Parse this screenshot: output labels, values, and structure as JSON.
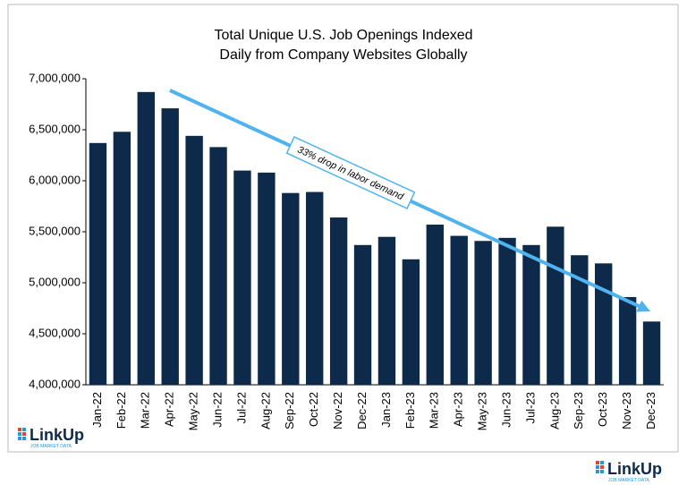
{
  "chart_data": {
    "type": "bar",
    "title": [
      "Total Unique U.S. Job Openings Indexed",
      "Daily from Company Websites Globally"
    ],
    "categories": [
      "Jan-22",
      "Feb-22",
      "Mar-22",
      "Apr-22",
      "May-22",
      "Jun-22",
      "Jul-22",
      "Aug-22",
      "Sep-22",
      "Oct-22",
      "Nov-22",
      "Dec-22",
      "Jan-23",
      "Feb-23",
      "Mar-23",
      "Apr-23",
      "May-23",
      "Jun-23",
      "Jul-23",
      "Aug-23",
      "Sep-23",
      "Oct-23",
      "Nov-23",
      "Dec-23"
    ],
    "values": [
      6370000,
      6480000,
      6870000,
      6710000,
      6440000,
      6330000,
      6100000,
      6080000,
      5880000,
      5890000,
      5640000,
      5370000,
      5450000,
      5230000,
      5570000,
      5460000,
      5410000,
      5440000,
      5370000,
      5550000,
      5270000,
      5190000,
      4860000,
      4620000
    ],
    "color": "#0d2a4a",
    "ylim": [
      4000000,
      7000000
    ],
    "yticks": [
      {
        "value": 4000000,
        "label": "4,000,000"
      },
      {
        "value": 4500000,
        "label": "4,500,000"
      },
      {
        "value": 5000000,
        "label": "5,000,000"
      },
      {
        "value": 5500000,
        "label": "5,500,000"
      },
      {
        "value": 6000000,
        "label": "6,000,000"
      },
      {
        "value": 6500000,
        "label": "6,500,000"
      },
      {
        "value": 7000000,
        "label": "7,000,000"
      }
    ],
    "grid": false,
    "annotation": "33% drop in labor demand",
    "annotation_color": "#4fb3f0"
  },
  "logos": [
    {
      "name": "LinkUp",
      "tagline": "JOB MARKET DATA"
    },
    {
      "name": "LinkUp",
      "tagline": "JOB MARKET DATA"
    }
  ]
}
